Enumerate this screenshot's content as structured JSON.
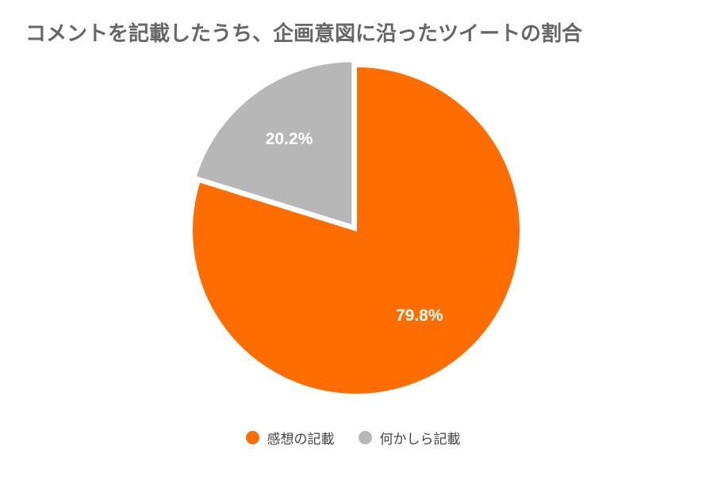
{
  "chart_data": {
    "type": "pie",
    "title": "コメントを記載したうち、企画意図に沿ったツイートの割合",
    "slices": [
      {
        "label": "感想の記載",
        "value": 79.8,
        "display": "79.8%",
        "color": "#ff6d01"
      },
      {
        "label": "何かしら記載",
        "value": 20.2,
        "display": "20.2%",
        "color": "#b7b7b7"
      }
    ],
    "legend_position": "bottom",
    "start_angle": "top, clockwise",
    "exploded_slice": "何かしら記載"
  }
}
